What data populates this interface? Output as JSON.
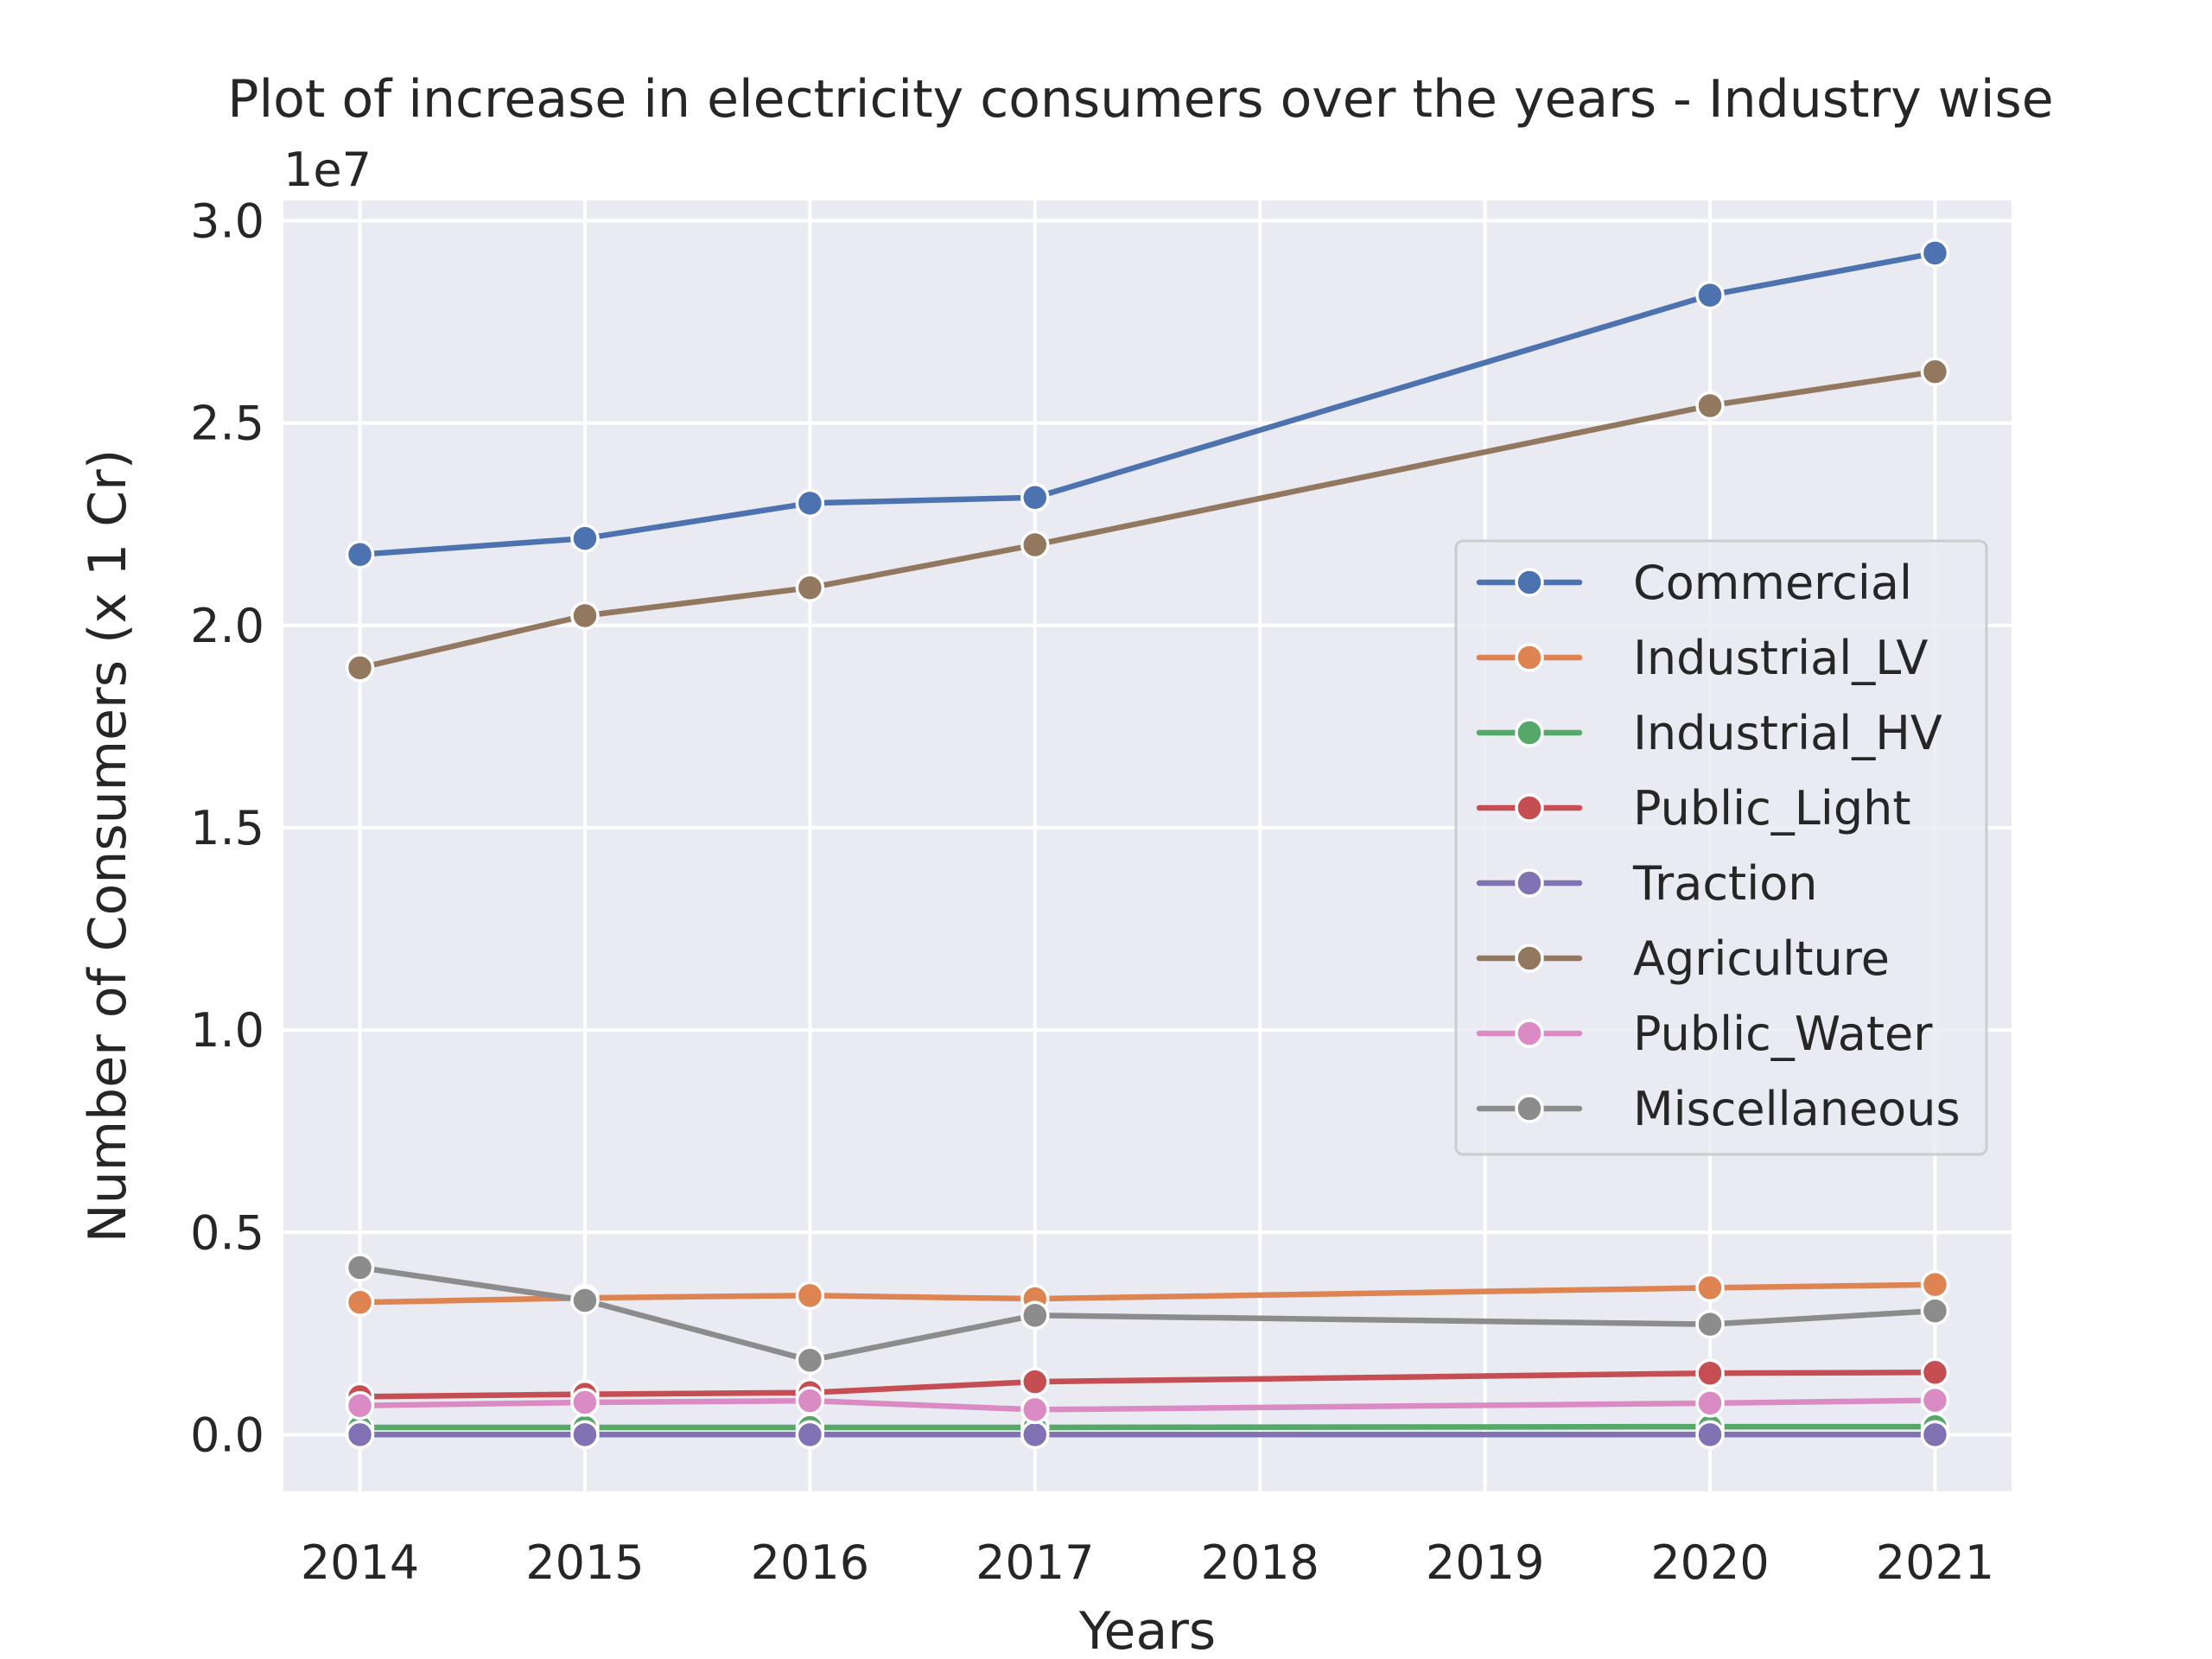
{
  "chart_data": {
    "type": "line",
    "title": "Plot of increase in electricity consumers over the years - Industry wise",
    "xlabel": "Years",
    "ylabel": "Number of Consumers (x 1 Cr)",
    "y_offset_text": "1e7",
    "x_ticks": [
      "2014",
      "2015",
      "2016",
      "2017",
      "2018",
      "2019",
      "2020",
      "2021"
    ],
    "y_ticks": [
      "0.0",
      "0.5",
      "1.0",
      "1.5",
      "2.0",
      "2.5",
      "3.0"
    ],
    "y_tick_values": [
      0,
      0.5,
      1.0,
      1.5,
      2.0,
      2.5,
      3.0
    ],
    "xlim": [
      2013.66,
      2021.34
    ],
    "ylim": [
      -0.14,
      3.05
    ],
    "y_scale_note": "values in units of 1e7",
    "grid": true,
    "legend_position": "center-right",
    "x": [
      2014,
      2015,
      2016,
      2017,
      2020,
      2021
    ],
    "series": [
      {
        "name": "Commercial",
        "color": "#4c72b0",
        "values": [
          2.175,
          2.215,
          2.302,
          2.316,
          2.816,
          2.92
        ]
      },
      {
        "name": "Industrial_LV",
        "color": "#dd8452",
        "values": [
          0.327,
          0.338,
          0.344,
          0.336,
          0.363,
          0.371
        ]
      },
      {
        "name": "Industrial_HV",
        "color": "#55a868",
        "values": [
          0.018,
          0.018,
          0.018,
          0.018,
          0.02,
          0.02
        ]
      },
      {
        "name": "Public_Light",
        "color": "#c44e52",
        "values": [
          0.094,
          0.1,
          0.104,
          0.131,
          0.152,
          0.154
        ]
      },
      {
        "name": "Traction",
        "color": "#8172b3",
        "values": [
          0.0002,
          0.0002,
          0.0002,
          0.0002,
          0.0002,
          0.0002
        ]
      },
      {
        "name": "Agriculture",
        "color": "#937860",
        "values": [
          1.895,
          2.024,
          2.093,
          2.199,
          2.543,
          2.627
        ]
      },
      {
        "name": "Public_Water",
        "color": "#da8bc3",
        "values": [
          0.072,
          0.08,
          0.084,
          0.062,
          0.078,
          0.085
        ]
      },
      {
        "name": "Miscellaneous",
        "color": "#8c8c8c",
        "values": [
          0.413,
          0.332,
          0.184,
          0.295,
          0.273,
          0.306
        ]
      }
    ]
  }
}
